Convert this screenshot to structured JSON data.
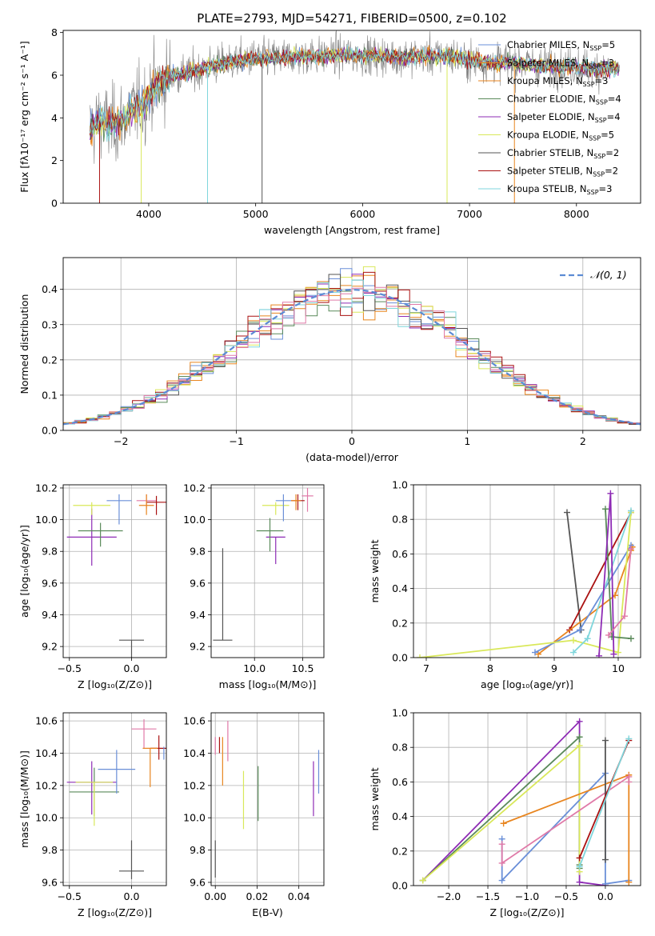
{
  "title": "PLATE=2793, MJD=54271, FIBERID=0500, z=0.102",
  "colors": {
    "Chabrier MILES": "#6a8fd8",
    "Salpeter MILES": "#e8851f",
    "Kroupa MILES": "#e8851f",
    "Chabrier ELODIE": "#5a8a5a",
    "Salpeter ELODIE": "#8e2bb5",
    "Kroupa ELODIE": "#d9e85a",
    "Chabrier STELIB": "#555555",
    "Salpeter STELIB": "#aa1111",
    "Kroupa STELIB": "#7fd6dc"
  },
  "chart_data": [
    {
      "id": "spectrum",
      "type": "line",
      "title": "PLATE=2793, MJD=54271, FIBERID=0500, z=0.102",
      "xlabel": "wavelength [Angstrom, rest frame]",
      "ylabel": "Flux [fλ10⁻¹⁷ erg cm⁻² s⁻¹ A⁻¹]",
      "xlim": [
        3200,
        8600
      ],
      "ylim": [
        0,
        8.1
      ],
      "xticks": [
        4000,
        5000,
        6000,
        7000,
        8000
      ],
      "yticks": [
        0,
        2,
        4,
        6,
        8
      ],
      "grid": false,
      "legend_position": "top-right",
      "continuum": {
        "x": [
          3450,
          3550,
          3650,
          3750,
          3850,
          3950,
          4050,
          4150,
          4250,
          4350,
          4450,
          4550,
          4650,
          4750,
          4850,
          5000,
          5200,
          5400,
          5600,
          5800,
          6000,
          6200,
          6400,
          6600,
          6800,
          7000,
          7200,
          7400,
          7600,
          7800,
          8000,
          8200,
          8400
        ],
        "y": [
          3.4,
          3.9,
          3.6,
          3.9,
          4.4,
          4.7,
          5.4,
          5.8,
          6.0,
          6.1,
          6.2,
          6.4,
          6.5,
          6.6,
          6.7,
          6.8,
          6.8,
          6.9,
          6.9,
          6.95,
          6.9,
          6.9,
          6.85,
          6.9,
          6.9,
          6.7,
          6.6,
          6.6,
          6.5,
          6.4,
          6.4,
          6.3,
          6.3
        ]
      },
      "series": [
        {
          "name": "Chabrier MILES, N_SSP=5",
          "label_main": "Chabrier MILES, N",
          "label_sub": "SSP",
          "label_end": "=5",
          "color": "#6a8fd8"
        },
        {
          "name": "Salpeter MILES, N_SSP=3",
          "label_main": "Salpeter MILES, N",
          "label_sub": "SSP",
          "label_end": "=3",
          "color": "#e8851f"
        },
        {
          "name": "Kroupa MILES, N_SSP=3",
          "label_main": "Kroupa MILES, N",
          "label_sub": "SSP",
          "label_end": "=3",
          "color": "#e8851f"
        },
        {
          "name": "Chabrier ELODIE, N_SSP=4",
          "label_main": "Chabrier ELODIE, N",
          "label_sub": "SSP",
          "label_end": "=4",
          "color": "#5a8a5a"
        },
        {
          "name": "Salpeter ELODIE, N_SSP=4",
          "label_main": "Salpeter ELODIE, N",
          "label_sub": "SSP",
          "label_end": "=4",
          "color": "#8e2bb5"
        },
        {
          "name": "Kroupa ELODIE, N_SSP=5",
          "label_main": "Kroupa ELODIE, N",
          "label_sub": "SSP",
          "label_end": "=5",
          "color": "#d9e85a"
        },
        {
          "name": "Chabrier STELIB, N_SSP=2",
          "label_main": "Chabrier STELIB, N",
          "label_sub": "SSP",
          "label_end": "=2",
          "color": "#555555"
        },
        {
          "name": "Salpeter STELIB, N_SSP=2",
          "label_main": "Salpeter STELIB, N",
          "label_sub": "SSP",
          "label_end": "=2",
          "color": "#aa1111"
        },
        {
          "name": "Kroupa STELIB, N_SSP=3",
          "label_main": "Kroupa STELIB, N",
          "label_sub": "SSP",
          "label_end": "=3",
          "color": "#7fd6dc"
        }
      ]
    },
    {
      "id": "residuals",
      "type": "line",
      "xlabel": "(data-model)/error",
      "ylabel": "Normed distribution",
      "xlim": [
        -2.5,
        2.5
      ],
      "ylim": [
        0,
        0.49
      ],
      "xticks": [
        -2,
        -1,
        0,
        1,
        2
      ],
      "xtick_labels": [
        "−2",
        "−1",
        "0",
        "1",
        "2"
      ],
      "yticks": [
        0.0,
        0.1,
        0.2,
        0.3,
        0.4
      ],
      "ytick_labels": [
        "0.0",
        "0.1",
        "0.2",
        "0.3",
        "0.4"
      ],
      "grid": true,
      "legend_position": "top-right",
      "legend_label": "𝒩(0, 1)",
      "bin_width": 0.1,
      "normal_color": "#5b8bd4"
    },
    {
      "id": "age-Z",
      "type": "scatter",
      "xlabel": "Z [log₁₀(Z/Z⊙)]",
      "ylabel": "age  [log₁₀(age/yr)]",
      "xlim": [
        -0.55,
        0.28
      ],
      "ylim": [
        9.13,
        10.22
      ],
      "xticks": [
        -0.5,
        0.0
      ],
      "xtick_labels": [
        "−0.5",
        "0.0"
      ],
      "yticks": [
        9.2,
        9.4,
        9.6,
        9.8,
        10.0,
        10.2
      ],
      "ytick_labels": [
        "9.2",
        "9.4",
        "9.6",
        "9.8",
        "10.0",
        "10.2"
      ],
      "grid": true,
      "points": [
        {
          "x": 0.0,
          "y": 9.24,
          "xerr": 0.1,
          "yerr": [
            0.58,
            0.0
          ],
          "color": "#555555"
        },
        {
          "x": -0.32,
          "y": 9.89,
          "xerr": 0.2,
          "yerr": [
            0.18,
            0.18
          ],
          "color": "#8e2bb5"
        },
        {
          "x": -0.25,
          "y": 9.93,
          "xerr": 0.18,
          "yerr": [
            0.1,
            0.05
          ],
          "color": "#5a8a5a"
        },
        {
          "x": -0.32,
          "y": 10.09,
          "xerr": 0.15,
          "yerr": [
            0.06,
            0.02
          ],
          "color": "#d9e85a"
        },
        {
          "x": -0.1,
          "y": 10.12,
          "xerr": 0.1,
          "yerr": [
            0.15,
            0.04
          ],
          "color": "#6a8fd8"
        },
        {
          "x": 0.12,
          "y": 10.12,
          "xerr": 0.08,
          "yerr": [
            0.05,
            0.04
          ],
          "color": "#e07aa8"
        },
        {
          "x": 0.2,
          "y": 10.11,
          "xerr": 0.08,
          "yerr": [
            0.08,
            0.04
          ],
          "color": "#aa1111"
        },
        {
          "x": 0.12,
          "y": 10.09,
          "xerr": 0.06,
          "yerr": [
            0.06,
            0.07
          ],
          "color": "#e8851f"
        }
      ]
    },
    {
      "id": "age-mass",
      "type": "scatter",
      "xlabel": "mass [log₁₀(M/M⊙)]",
      "xlim": [
        9.55,
        10.72
      ],
      "ylim": [
        9.13,
        10.22
      ],
      "xticks": [
        10.0,
        10.5
      ],
      "xtick_labels": [
        "10.0",
        "10.5"
      ],
      "yticks": [
        9.2,
        9.4,
        9.6,
        9.8,
        10.0,
        10.2
      ],
      "ytick_labels": [
        "9.2",
        "9.4",
        "9.6",
        "9.8",
        "10.0",
        "10.2"
      ],
      "grid": true,
      "points": [
        {
          "x": 9.67,
          "y": 9.24,
          "xerr": 0.1,
          "yerr": [
            0.0,
            0.58
          ],
          "color": "#555555"
        },
        {
          "x": 10.22,
          "y": 9.89,
          "xerr": 0.1,
          "yerr": [
            0.17,
            0.0
          ],
          "color": "#8e2bb5"
        },
        {
          "x": 10.16,
          "y": 9.93,
          "xerr": 0.14,
          "yerr": [
            0.13,
            0.08
          ],
          "color": "#5a8a5a"
        },
        {
          "x": 10.22,
          "y": 10.09,
          "xerr": 0.14,
          "yerr": [
            0.06,
            0.02
          ],
          "color": "#d9e85a"
        },
        {
          "x": 10.3,
          "y": 10.12,
          "xerr": 0.08,
          "yerr": [
            0.13,
            0.04
          ],
          "color": "#6a8fd8"
        },
        {
          "x": 10.55,
          "y": 10.15,
          "xerr": 0.06,
          "yerr": [
            0.1,
            0.05
          ],
          "color": "#e07aa8"
        },
        {
          "x": 10.45,
          "y": 10.12,
          "xerr": 0.07,
          "yerr": [
            0.06,
            0.04
          ],
          "color": "#aa1111"
        },
        {
          "x": 10.43,
          "y": 10.12,
          "xerr": 0.05,
          "yerr": [
            0.06,
            0.04
          ],
          "color": "#e8851f"
        }
      ]
    },
    {
      "id": "weight-age",
      "type": "line",
      "xlabel": "age  [log₁₀(age/yr)]",
      "ylabel": "mass weight",
      "xlim": [
        6.8,
        10.35
      ],
      "ylim": [
        0,
        1.0
      ],
      "xticks": [
        7,
        8,
        9,
        10
      ],
      "xtick_labels": [
        "7",
        "8",
        "9",
        "10"
      ],
      "yticks": [
        0.0,
        0.2,
        0.4,
        0.6,
        0.8,
        1.0
      ],
      "ytick_labels": [
        "0.0",
        "0.2",
        "0.4",
        "0.6",
        "0.8",
        "1.0"
      ],
      "grid": true,
      "series": [
        {
          "color": "#555555",
          "x": [
            9.2,
            9.42
          ],
          "y": [
            0.84,
            0.16
          ]
        },
        {
          "color": "#aa1111",
          "x": [
            9.24,
            10.2
          ],
          "y": [
            0.16,
            0.84
          ]
        },
        {
          "color": "#e8851f",
          "x": [
            8.75,
            9.95,
            10.2,
            10.22
          ],
          "y": [
            0.02,
            0.36,
            0.62,
            0.64
          ]
        },
        {
          "color": "#6a8fd8",
          "x": [
            8.7,
            9.4,
            10.2
          ],
          "y": [
            0.03,
            0.16,
            0.65
          ]
        },
        {
          "color": "#d9e85a",
          "x": [
            6.9,
            9.3,
            10.0,
            10.2
          ],
          "y": [
            0.0,
            0.1,
            0.03,
            0.84
          ]
        },
        {
          "color": "#7fd6dc",
          "x": [
            9.3,
            9.52,
            10.2
          ],
          "y": [
            0.03,
            0.11,
            0.85
          ]
        },
        {
          "color": "#5a8a5a",
          "x": [
            9.8,
            9.9,
            10.2
          ],
          "y": [
            0.86,
            0.12,
            0.11
          ]
        },
        {
          "color": "#8e2bb5",
          "x": [
            9.7,
            9.88,
            9.93
          ],
          "y": [
            0.01,
            0.95,
            0.02
          ]
        },
        {
          "color": "#e07aa8",
          "x": [
            9.85,
            10.1,
            10.2
          ],
          "y": [
            0.13,
            0.24,
            0.63
          ]
        }
      ]
    },
    {
      "id": "mass-Z",
      "type": "scatter",
      "xlabel": "Z [log₁₀(Z/Z⊙)]",
      "ylabel": "mass [log₁₀(M/M⊙)]",
      "xlim": [
        -0.55,
        0.28
      ],
      "ylim": [
        9.58,
        10.65
      ],
      "xticks": [
        -0.5,
        0.0
      ],
      "xtick_labels": [
        "−0.5",
        "0.0"
      ],
      "yticks": [
        9.6,
        9.8,
        10.0,
        10.2,
        10.4,
        10.6
      ],
      "ytick_labels": [
        "9.6",
        "9.8",
        "10.0",
        "10.2",
        "10.4",
        "10.6"
      ],
      "grid": true,
      "points": [
        {
          "x": 0.0,
          "y": 9.67,
          "xerr": 0.1,
          "yerr": [
            0.05,
            0.19
          ],
          "color": "#555555"
        },
        {
          "x": -0.32,
          "y": 10.22,
          "xerr": 0.2,
          "yerr": [
            0.2,
            0.13
          ],
          "color": "#8e2bb5"
        },
        {
          "x": -0.3,
          "y": 10.16,
          "xerr": 0.2,
          "yerr": [
            0.15,
            0.15
          ],
          "color": "#5a8a5a"
        },
        {
          "x": -0.3,
          "y": 10.22,
          "xerr": 0.15,
          "yerr": [
            0.27,
            0.0
          ],
          "color": "#d9e85a"
        },
        {
          "x": -0.12,
          "y": 10.3,
          "xerr": 0.15,
          "yerr": [
            0.15,
            0.12
          ],
          "color": "#6a8fd8"
        },
        {
          "x": 0.1,
          "y": 10.55,
          "xerr": 0.1,
          "yerr": [
            0.12,
            0.06
          ],
          "color": "#e07aa8"
        },
        {
          "x": 0.22,
          "y": 10.43,
          "xerr": 0.07,
          "yerr": [
            0.07,
            0.08
          ],
          "color": "#aa1111"
        },
        {
          "x": 0.15,
          "y": 10.43,
          "xerr": 0.06,
          "yerr": [
            0.24,
            0.0
          ],
          "color": "#e8851f"
        },
        {
          "x": 0.26,
          "y": 10.4,
          "xerr": 0.0,
          "yerr": [
            0.04,
            0.04
          ],
          "color": "#6a8fd8"
        }
      ]
    },
    {
      "id": "mass-EBV",
      "type": "scatter",
      "xlabel": "E(B-V)",
      "xlim": [
        -0.002,
        0.052
      ],
      "ylim": [
        9.58,
        10.65
      ],
      "xticks": [
        0.0,
        0.02,
        0.04
      ],
      "xtick_labels": [
        "0.00",
        "0.02",
        "0.04"
      ],
      "yticks": [
        9.6,
        9.8,
        10.0,
        10.2,
        10.4,
        10.6
      ],
      "ytick_labels": [
        "9.6",
        "9.8",
        "10.0",
        "10.2",
        "10.4",
        "10.6"
      ],
      "grid": true,
      "points": [
        {
          "x": 0.0,
          "y": 9.8,
          "xerr": 0.0,
          "yerr": [
            0.17,
            0.06
          ],
          "color": "#555555"
        },
        {
          "x": 0.0,
          "y": 10.43,
          "xerr": 0.0,
          "yerr": [
            0.04,
            0.07
          ],
          "color": "#e07aa8"
        },
        {
          "x": 0.002,
          "y": 10.42,
          "xerr": 0.0,
          "yerr": [
            0.02,
            0.08
          ],
          "color": "#aa1111"
        },
        {
          "x": 0.0035,
          "y": 10.3,
          "xerr": 0.0,
          "yerr": [
            0.1,
            0.2
          ],
          "color": "#e8851f"
        },
        {
          "x": 0.006,
          "y": 10.45,
          "xerr": 0.0,
          "yerr": [
            0.1,
            0.15
          ],
          "color": "#e07aa8"
        },
        {
          "x": 0.0135,
          "y": 10.1,
          "xerr": 0.0,
          "yerr": [
            0.17,
            0.19
          ],
          "color": "#d9e85a"
        },
        {
          "x": 0.0205,
          "y": 10.15,
          "xerr": 0.0,
          "yerr": [
            0.17,
            0.17
          ],
          "color": "#5a8a5a"
        },
        {
          "x": 0.047,
          "y": 10.17,
          "xerr": 0.0,
          "yerr": [
            0.16,
            0.18
          ],
          "color": "#8e2bb5"
        },
        {
          "x": 0.0495,
          "y": 10.28,
          "xerr": 0.0,
          "yerr": [
            0.13,
            0.14
          ],
          "color": "#6a8fd8"
        }
      ]
    },
    {
      "id": "weight-Z",
      "type": "line",
      "xlabel": "Z [log₁₀(Z/Z⊙)]",
      "ylabel": "mass weight",
      "xlim": [
        -2.45,
        0.45
      ],
      "ylim": [
        0,
        1.0
      ],
      "xticks": [
        -2.0,
        -1.5,
        -1.0,
        -0.5,
        0.0
      ],
      "xtick_labels": [
        "−2.0",
        "−1.5",
        "−1.0",
        "−0.5",
        "0.0"
      ],
      "yticks": [
        0.0,
        0.2,
        0.4,
        0.6,
        0.8,
        1.0
      ],
      "ytick_labels": [
        "0.0",
        "0.2",
        "0.4",
        "0.6",
        "0.8",
        "1.0"
      ],
      "grid": true,
      "series": [
        {
          "color": "#8e2bb5",
          "x": [
            -2.33,
            -0.33,
            -0.33,
            0.0
          ],
          "y": [
            0.03,
            0.95,
            0.02,
            0.0
          ]
        },
        {
          "color": "#5a8a5a",
          "x": [
            -2.33,
            -0.33,
            -0.33,
            -0.33
          ],
          "y": [
            0.03,
            0.86,
            0.12,
            0.1
          ]
        },
        {
          "color": "#d9e85a",
          "x": [
            -2.33,
            -0.33,
            -0.33
          ],
          "y": [
            0.03,
            0.81,
            0.08
          ]
        },
        {
          "color": "#6a8fd8",
          "x": [
            -1.32,
            -1.32,
            0.0,
            0.0,
            0.3
          ],
          "y": [
            0.27,
            0.03,
            0.65,
            0.01,
            0.03
          ]
        },
        {
          "color": "#e8851f",
          "x": [
            -1.3,
            0.3,
            0.3
          ],
          "y": [
            0.36,
            0.64,
            0.02
          ]
        },
        {
          "color": "#e07aa8",
          "x": [
            -1.32,
            -1.32,
            0.3,
            0.3
          ],
          "y": [
            0.24,
            0.13,
            0.63,
            0.6
          ]
        },
        {
          "color": "#555555",
          "x": [
            0.0,
            0.0
          ],
          "y": [
            0.84,
            0.15
          ]
        },
        {
          "color": "#aa1111",
          "x": [
            -0.33,
            0.3
          ],
          "y": [
            0.16,
            0.84
          ]
        },
        {
          "color": "#7fd6dc",
          "x": [
            -0.33,
            0.3
          ],
          "y": [
            0.11,
            0.85
          ]
        }
      ]
    }
  ]
}
